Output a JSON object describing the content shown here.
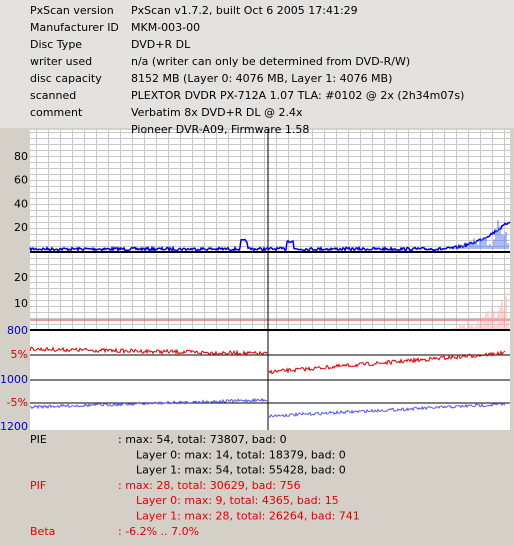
{
  "info": [
    {
      "label": "PxScan version",
      "value": "PxScan v1.7.2, built Oct  6 2005 17:41:29"
    },
    {
      "label": "Manufacturer ID",
      "value": "MKM-003-00"
    },
    {
      "label": "Disc Type",
      "value": "DVD+R DL"
    },
    {
      "label": "writer used",
      "value": "n/a (writer can only be determined from DVD-R/W)"
    },
    {
      "label": "disc capacity",
      "value": "8152 MB (Layer 0: 4076 MB,  Layer 1: 4076 MB)"
    },
    {
      "label": "scanned",
      "value": "PLEXTOR DVDR  PX-712A 1.07 TLA: #0102 @ 2x (2h34m07s)"
    },
    {
      "label": "comment",
      "value": "Verbatim 8x DVD+R DL @ 2.4x"
    },
    {
      "value": "Pioneer DVR-A09, Firmware 1.58"
    }
  ],
  "graph": {
    "pie_ticks": [
      "80",
      "60",
      "40",
      "20"
    ],
    "pif_ticks": [
      "20",
      "10"
    ],
    "jitter_ticks": [
      {
        "text": "800",
        "color": "#0000cc"
      },
      {
        "text": "5%",
        "color": "#cc0000"
      },
      {
        "text": "1000",
        "color": "#0000cc"
      },
      {
        "text": "-5%",
        "color": "#cc0000"
      },
      {
        "text": "1200",
        "color": "#0000cc"
      }
    ]
  },
  "stats": [
    {
      "label": "PIE",
      "color": "#000000",
      "lines": [
        ": max: 54, total: 73807, bad: 0",
        "Layer 0: max: 14, total: 18379, bad: 0",
        "Layer 1: max: 54, total: 55428, bad: 0"
      ]
    },
    {
      "label": "PIF",
      "color": "#dd0000",
      "lines": [
        ": max: 28, total: 30629, bad: 756",
        "Layer 0: max: 9, total: 4365, bad: 15",
        "Layer 1: max: 28, total: 26264, bad: 741"
      ]
    },
    {
      "label": "Beta",
      "color": "#dd0000",
      "lines": [
        ": -6.2% .. 7.0%"
      ]
    }
  ]
}
